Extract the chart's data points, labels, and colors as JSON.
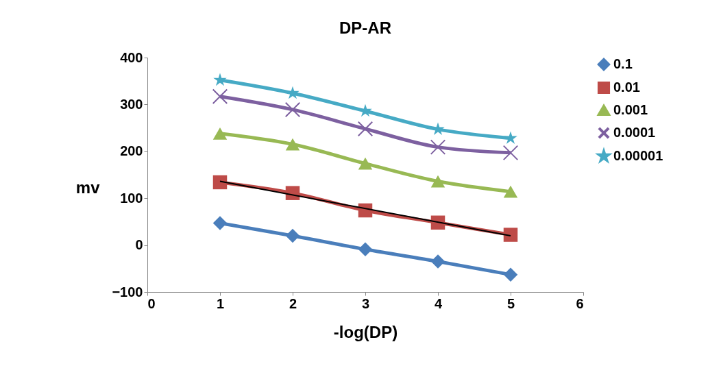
{
  "chart_data": {
    "type": "line",
    "title": "DP-AR",
    "xlabel": "-log(DP)",
    "ylabel": "mv",
    "x": [
      1,
      2,
      3,
      4,
      5
    ],
    "xlim": [
      0,
      6
    ],
    "xticks": [
      0,
      1,
      2,
      3,
      4,
      5,
      6
    ],
    "ylim": [
      -100,
      400
    ],
    "yticks": [
      -100,
      0,
      100,
      200,
      300,
      400
    ],
    "grid": false,
    "legend": "top right",
    "series": [
      {
        "name": "0.1",
        "color": "#4a7ebb",
        "marker": "diamond",
        "values": [
          47,
          20,
          -9,
          -35,
          -63
        ]
      },
      {
        "name": "0.01",
        "color": "#be4b48",
        "marker": "square",
        "values": [
          134,
          111,
          74,
          48,
          22
        ]
      },
      {
        "name": "0.001",
        "color": "#98b954",
        "marker": "triangle",
        "values": [
          238,
          215,
          174,
          136,
          114
        ]
      },
      {
        "name": "0.0001",
        "color": "#7d60a0",
        "marker": "cross",
        "values": [
          317,
          289,
          248,
          209,
          197
        ]
      },
      {
        "name": "0.00001",
        "color": "#46aac5",
        "marker": "star",
        "values": [
          352,
          324,
          286,
          247,
          228
        ]
      },
      {
        "type": "line",
        "color": "#000000",
        "x": [
          1,
          5
        ],
        "values": [
          136,
          20
        ]
      }
    ]
  }
}
